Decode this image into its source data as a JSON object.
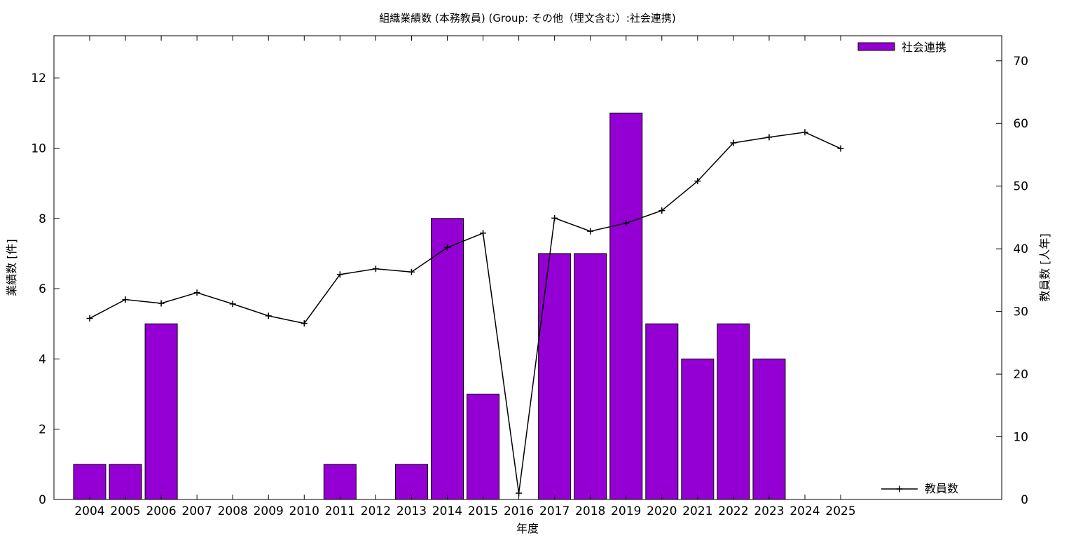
{
  "chart_data": {
    "type": "bar",
    "title": "組織業績数 (本務教員) (Group: その他（埋文含む）:社会連携)",
    "xlabel": "年度",
    "ylabel": "業績数 [件]",
    "y2label": "教員数 [人年]",
    "categories": [
      "2004",
      "2005",
      "2006",
      "2007",
      "2008",
      "2009",
      "2010",
      "2011",
      "2012",
      "2013",
      "2014",
      "2015",
      "2016",
      "2017",
      "2018",
      "2019",
      "2020",
      "2021",
      "2022",
      "2023",
      "2024",
      "2025"
    ],
    "ylim": [
      0,
      13.2
    ],
    "yticks": [
      0,
      2,
      4,
      6,
      8,
      10,
      12
    ],
    "y2lim": [
      0,
      74
    ],
    "y2ticks": [
      0,
      10,
      20,
      30,
      40,
      50,
      60,
      70
    ],
    "grid": false,
    "series": [
      {
        "name": "社会連携",
        "kind": "bar",
        "axis": "y",
        "color": "#9400d3",
        "values": [
          1,
          1,
          5,
          0,
          0,
          0,
          0,
          1,
          0,
          1,
          8,
          3,
          0,
          7,
          7,
          11,
          5,
          4,
          5,
          4,
          0,
          0
        ],
        "legend_position": "top-right"
      },
      {
        "name": "教員数",
        "kind": "line",
        "axis": "y2",
        "color": "#000000",
        "marker": "plus",
        "values": [
          28.9,
          31.9,
          31.3,
          33.0,
          31.2,
          29.3,
          28.1,
          35.9,
          36.8,
          36.3,
          40.2,
          42.5,
          1.0,
          44.9,
          42.8,
          44.1,
          46.1,
          50.8,
          56.9,
          57.8,
          58.6,
          56.0
        ],
        "legend_position": "bottom-right"
      }
    ]
  }
}
